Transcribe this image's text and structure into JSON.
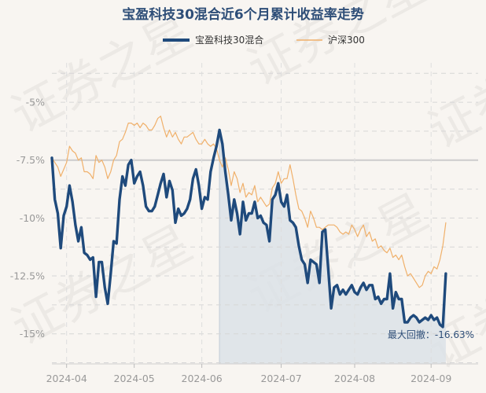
{
  "chart_data": {
    "type": "line",
    "title": "宝盈科技30混合近6个月累计收益率走势",
    "watermark": "证券之星",
    "legend": {
      "placement": "top-center"
    },
    "ylim": [
      -16.3,
      -3.3
    ],
    "yticks": [
      -5,
      -7.5,
      -10,
      -12.5,
      -15
    ],
    "ytick_labels": [
      "-5%",
      "-7.5%",
      "-10%",
      "-12.5%",
      "-15%"
    ],
    "xticks": [
      {
        "label": "2024-04",
        "day": 5
      },
      {
        "label": "2024-05",
        "day": 28
      },
      {
        "label": "2024-06",
        "day": 51
      },
      {
        "label": "2024-07",
        "day": 78
      },
      {
        "label": "2024-08",
        "day": 103
      },
      {
        "label": "2024-09",
        "day": 129
      }
    ],
    "xlim": [
      0,
      145
    ],
    "grid": true,
    "series": [
      {
        "name": "宝盈科技30混合",
        "color": "#1f4a7c",
        "values": [
          -7.4,
          -9.2,
          -9.8,
          -11.3,
          -9.9,
          -9.5,
          -8.6,
          -9.3,
          -10.3,
          -11.0,
          -10.4,
          -11.5,
          -11.6,
          -11.8,
          -11.7,
          -13.4,
          -11.9,
          -11.9,
          -13.0,
          -13.7,
          -12.4,
          -11.0,
          -11.1,
          -9.2,
          -8.2,
          -8.6,
          -7.7,
          -7.5,
          -8.5,
          -8.2,
          -8.0,
          -8.6,
          -9.5,
          -9.7,
          -9.7,
          -9.5,
          -9.0,
          -8.5,
          -8.1,
          -9.1,
          -8.4,
          -8.8,
          -10.2,
          -9.6,
          -9.9,
          -9.8,
          -9.6,
          -9.2,
          -8.3,
          -7.9,
          -8.6,
          -9.6,
          -9.1,
          -9.2,
          -8.0,
          -7.4,
          -6.9,
          -6.2,
          -6.8,
          -8.0,
          -9.0,
          -10.1,
          -9.2,
          -9.8,
          -10.7,
          -9.3,
          -10.1,
          -9.8,
          -9.8,
          -9.3,
          -10.0,
          -9.9,
          -10.2,
          -10.3,
          -11.0,
          -9.2,
          -9.0,
          -8.5,
          -9.3,
          -9.5,
          -9.0,
          -10.1,
          -10.2,
          -10.4,
          -11.2,
          -11.8,
          -12.0,
          -12.8,
          -11.8,
          -11.9,
          -12.0,
          -12.8,
          -10.6,
          -10.5,
          -12.2,
          -13.9,
          -13.0,
          -12.9,
          -13.3,
          -13.1,
          -13.3,
          -13.1,
          -12.9,
          -13.2,
          -13.3,
          -13.0,
          -12.8,
          -13.1,
          -12.9,
          -12.9,
          -13.5,
          -13.4,
          -13.7,
          -13.5,
          -13.5,
          -12.4,
          -13.9,
          -13.2,
          -13.5,
          -13.5,
          -14.5,
          -14.5,
          -14.3,
          -14.2,
          -14.3,
          -14.5,
          -14.4,
          -14.3,
          -14.4,
          -14.2,
          -14.4,
          -14.3,
          -14.6,
          -14.7,
          -12.4
        ]
      },
      {
        "name": "沪深300",
        "color": "#f0b06a",
        "values": [
          -7.4,
          -7.6,
          -7.8,
          -8.2,
          -7.9,
          -7.6,
          -6.9,
          -7.1,
          -7.2,
          -7.5,
          -7.4,
          -8.0,
          -8.0,
          -8.1,
          -8.3,
          -7.3,
          -7.6,
          -7.5,
          -7.8,
          -8.3,
          -8.0,
          -7.5,
          -7.3,
          -6.7,
          -6.6,
          -6.3,
          -5.9,
          -5.9,
          -6.0,
          -5.9,
          -6.1,
          -5.9,
          -6.0,
          -6.2,
          -6.2,
          -6.0,
          -5.7,
          -5.6,
          -6.1,
          -6.5,
          -6.2,
          -6.5,
          -6.3,
          -6.6,
          -6.8,
          -6.5,
          -6.5,
          -6.4,
          -6.3,
          -6.6,
          -6.8,
          -6.8,
          -6.6,
          -6.8,
          -6.9,
          -6.8,
          -7.0,
          -7.5,
          -7.8,
          -7.4,
          -7.9,
          -8.6,
          -8.0,
          -8.3,
          -8.9,
          -8.5,
          -9.1,
          -8.9,
          -9.0,
          -8.6,
          -9.3,
          -9.1,
          -9.3,
          -9.5,
          -9.4,
          -8.7,
          -8.5,
          -8.0,
          -8.5,
          -8.3,
          -8.3,
          -7.7,
          -8.3,
          -9.0,
          -9.6,
          -9.7,
          -10.0,
          -10.4,
          -9.7,
          -10.0,
          -10.4,
          -10.4,
          -10.5,
          -10.4,
          -10.3,
          -10.3,
          -10.3,
          -10.4,
          -10.6,
          -10.7,
          -10.6,
          -10.7,
          -10.3,
          -10.5,
          -10.8,
          -10.5,
          -10.3,
          -10.8,
          -10.6,
          -11.0,
          -10.9,
          -11.3,
          -11.2,
          -11.4,
          -11.5,
          -11.3,
          -11.7,
          -11.6,
          -11.8,
          -11.6,
          -12.1,
          -12.5,
          -12.4,
          -12.6,
          -12.8,
          -13.0,
          -12.9,
          -12.5,
          -12.3,
          -12.4,
          -12.1,
          -12.2,
          -11.8,
          -11.2,
          -10.2
        ]
      }
    ],
    "max_drawdown": {
      "label": "最大回撤：-16.63%",
      "start_day": 57,
      "end_day": 145,
      "fill_color": "#dce2e8"
    },
    "reference_line": {
      "value": -7.5,
      "color": "#cccccc"
    }
  }
}
